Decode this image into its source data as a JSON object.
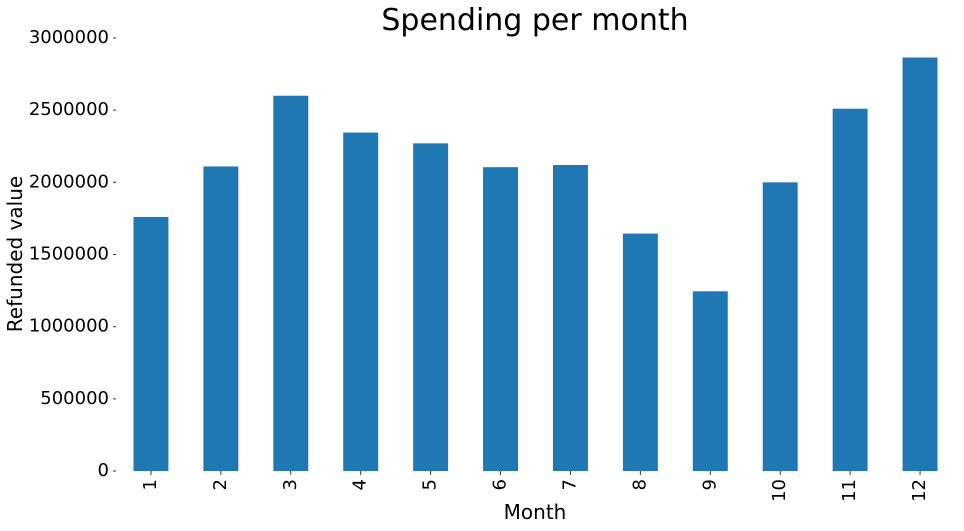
{
  "chart_data": {
    "type": "bar",
    "title": "Spending per month",
    "xlabel": "Month",
    "ylabel": "Refunded value",
    "categories": [
      "1",
      "2",
      "3",
      "4",
      "5",
      "6",
      "7",
      "8",
      "9",
      "10",
      "11",
      "12"
    ],
    "values": [
      1760000,
      2110000,
      2600000,
      2345000,
      2270000,
      2105000,
      2120000,
      1645000,
      1245000,
      2000000,
      2510000,
      2865000
    ],
    "ylim": [
      0,
      3000000
    ],
    "yticks": [
      "0",
      "500000",
      "1000000",
      "1500000",
      "2000000",
      "2500000",
      "3000000"
    ],
    "bar_color": "#1f77b4",
    "grid": false,
    "legend": "none"
  }
}
